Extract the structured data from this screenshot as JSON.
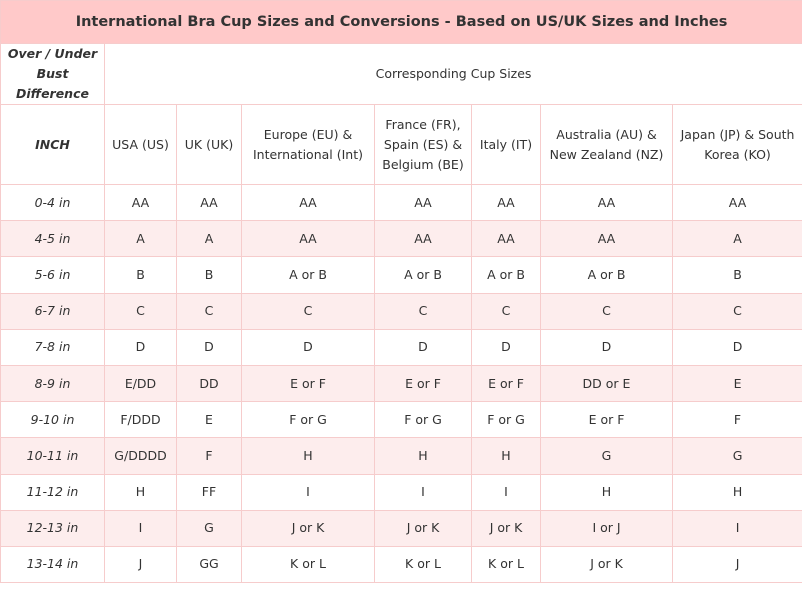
{
  "table": {
    "title": "International Bra Cup Sizes and Conversions - Based on US/UK Sizes and Inches",
    "difference_header": "Over / Under Bust Difference",
    "group_header": "Corresponding Cup Sizes",
    "columns": [
      "INCH",
      "USA (US)",
      "UK (UK)",
      "Europe (EU) & International (Int)",
      "France (FR), Spain (ES) & Belgium (BE)",
      "Italy (IT)",
      "Australia (AU) & New Zealand (NZ)",
      "Japan (JP) & South Korea (KO)"
    ],
    "rows": [
      [
        "0-4 in",
        "AA",
        "AA",
        "AA",
        "AA",
        "AA",
        "AA",
        "AA"
      ],
      [
        "4-5 in",
        "A",
        "A",
        "AA",
        "AA",
        "AA",
        "AA",
        "A"
      ],
      [
        "5-6 in",
        "B",
        "B",
        "A or B",
        "A or B",
        "A or B",
        "A or B",
        "B"
      ],
      [
        "6-7 in",
        "C",
        "C",
        "C",
        "C",
        "C",
        "C",
        "C"
      ],
      [
        "7-8 in",
        "D",
        "D",
        "D",
        "D",
        "D",
        "D",
        "D"
      ],
      [
        "8-9 in",
        "E/DD",
        "DD",
        "E or F",
        "E or F",
        "E or F",
        "DD or E",
        "E"
      ],
      [
        "9-10 in",
        "F/DDD",
        "E",
        "F or G",
        "F or G",
        "F or G",
        "E or F",
        "F"
      ],
      [
        "10-11 in",
        "G/DDDD",
        "F",
        "H",
        "H",
        "H",
        "G",
        "G"
      ],
      [
        "11-12 in",
        "H",
        "FF",
        "I",
        "I",
        "I",
        "H",
        "H"
      ],
      [
        "12-13 in",
        "I",
        "G",
        "J or K",
        "J or K",
        "J or K",
        "I or J",
        "I"
      ],
      [
        "13-14 in",
        "J",
        "GG",
        "K or L",
        "K or L",
        "K or L",
        "J or K",
        "J"
      ]
    ]
  }
}
